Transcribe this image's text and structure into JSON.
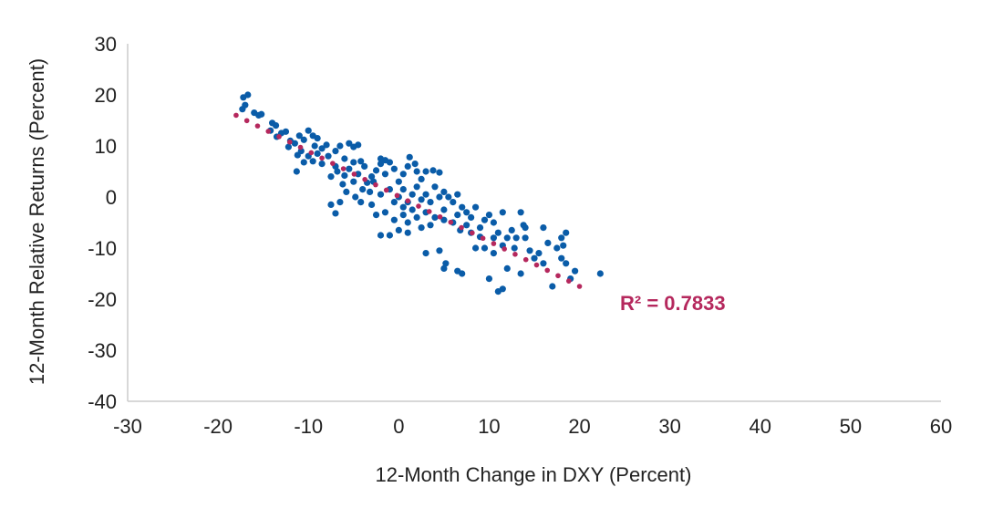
{
  "chart_data": {
    "type": "scatter",
    "xlabel": "12-Month Change in DXY (Percent)",
    "ylabel": "12-Month Relative Returns (Percent)",
    "xlim": [
      -30,
      60
    ],
    "ylim": [
      -40,
      30
    ],
    "xticks": [
      -30,
      -20,
      -10,
      0,
      10,
      20,
      30,
      40,
      50,
      60
    ],
    "yticks": [
      30,
      20,
      10,
      0,
      -10,
      -20,
      -30,
      -40
    ],
    "grid": false,
    "point_color": "#0a5ca8",
    "trend_color": "#b5285d",
    "trendline": {
      "x": [
        -18,
        20
      ],
      "y": [
        16,
        -17.5
      ],
      "label": "R² = 0.7833"
    },
    "points": [
      [
        -17.2,
        19.5
      ],
      [
        -16.7,
        20
      ],
      [
        -17,
        18
      ],
      [
        -17.3,
        17.2
      ],
      [
        -16,
        16.5
      ],
      [
        -15.5,
        16
      ],
      [
        -15.2,
        16.2
      ],
      [
        -14,
        14.5
      ],
      [
        -13.6,
        14
      ],
      [
        -14.2,
        13
      ],
      [
        -13,
        12.5
      ],
      [
        -13.5,
        11.8
      ],
      [
        -12.5,
        12.8
      ],
      [
        -12,
        11
      ],
      [
        -11.5,
        10.5
      ],
      [
        -12.2,
        9.8
      ],
      [
        -11,
        12
      ],
      [
        -10.5,
        11.2
      ],
      [
        -10,
        13
      ],
      [
        -9.5,
        12
      ],
      [
        -9,
        11.5
      ],
      [
        -9.3,
        10
      ],
      [
        -10.8,
        9
      ],
      [
        -11.2,
        8.2
      ],
      [
        -10,
        8
      ],
      [
        -9,
        8.5
      ],
      [
        -8.5,
        9.5
      ],
      [
        -8,
        10.2
      ],
      [
        -7.8,
        8
      ],
      [
        -8.5,
        6.5
      ],
      [
        -9.5,
        7
      ],
      [
        -10.5,
        6.8
      ],
      [
        -11.3,
        5
      ],
      [
        -7,
        9
      ],
      [
        -6.5,
        10
      ],
      [
        -5.5,
        10.5
      ],
      [
        -5,
        9.8
      ],
      [
        -4.5,
        10.2
      ],
      [
        -6,
        7.5
      ],
      [
        -7,
        6
      ],
      [
        -6.8,
        5
      ],
      [
        -7.5,
        4
      ],
      [
        -6,
        4.2
      ],
      [
        -5.5,
        5.5
      ],
      [
        -5,
        6.8
      ],
      [
        -4.2,
        7
      ],
      [
        -3.8,
        6
      ],
      [
        -4.5,
        4.5
      ],
      [
        -5,
        3
      ],
      [
        -6.2,
        2.5
      ],
      [
        -5.8,
        1
      ],
      [
        -4.8,
        0
      ],
      [
        -4,
        1.5
      ],
      [
        -3.5,
        2.8
      ],
      [
        -3,
        4
      ],
      [
        -2.5,
        5.2
      ],
      [
        -2,
        6.5
      ],
      [
        -1.5,
        7.2
      ],
      [
        -2,
        7.5
      ],
      [
        -1,
        6.8
      ],
      [
        -0.5,
        5.5
      ],
      [
        -1.5,
        4.5
      ],
      [
        -2.8,
        3
      ],
      [
        -3.2,
        1
      ],
      [
        -4.2,
        -1
      ],
      [
        -3,
        -1.5
      ],
      [
        -2,
        0.5
      ],
      [
        -1,
        1.5
      ],
      [
        0,
        3
      ],
      [
        0.5,
        4.5
      ],
      [
        1,
        6
      ],
      [
        1.2,
        7.8
      ],
      [
        1.8,
        6.5
      ],
      [
        2,
        5
      ],
      [
        0,
        0
      ],
      [
        0.5,
        1.5
      ],
      [
        -0.5,
        -1
      ],
      [
        0.5,
        -2
      ],
      [
        1,
        -1
      ],
      [
        1.5,
        0.5
      ],
      [
        2,
        2
      ],
      [
        2.5,
        3.5
      ],
      [
        3,
        5
      ],
      [
        3.8,
        5.2
      ],
      [
        4.5,
        4.8
      ],
      [
        4,
        2
      ],
      [
        3,
        0.5
      ],
      [
        2.5,
        -0.5
      ],
      [
        1.5,
        -2.5
      ],
      [
        0.5,
        -3.5
      ],
      [
        -0.5,
        -4.5
      ],
      [
        -1.5,
        -3
      ],
      [
        -2.5,
        -3.5
      ],
      [
        -7,
        -3.2
      ],
      [
        -7.5,
        -1.5
      ],
      [
        -6.5,
        -1
      ],
      [
        1,
        -5
      ],
      [
        0,
        -6.5
      ],
      [
        -1,
        -7.5
      ],
      [
        -2,
        -7.5
      ],
      [
        1,
        -7
      ],
      [
        2,
        -4
      ],
      [
        3,
        -3
      ],
      [
        3.5,
        -1
      ],
      [
        4.5,
        0
      ],
      [
        5,
        1
      ],
      [
        5.5,
        0
      ],
      [
        6,
        -1
      ],
      [
        6.5,
        0.5
      ],
      [
        7,
        -2
      ],
      [
        5,
        -2.5
      ],
      [
        4,
        -4
      ],
      [
        5,
        -4.5
      ],
      [
        6,
        -5
      ],
      [
        6.5,
        -3.5
      ],
      [
        7.5,
        -3
      ],
      [
        8,
        -4
      ],
      [
        8.5,
        -2
      ],
      [
        7.5,
        -5.5
      ],
      [
        6.8,
        -6.5
      ],
      [
        8,
        -7
      ],
      [
        9,
        -6
      ],
      [
        9.5,
        -4.5
      ],
      [
        10,
        -3.5
      ],
      [
        10.5,
        -5
      ],
      [
        9,
        -7.8
      ],
      [
        10.5,
        -8
      ],
      [
        11,
        -7
      ],
      [
        11.5,
        -9.5
      ],
      [
        12,
        -8
      ],
      [
        12.5,
        -6.5
      ],
      [
        12.8,
        -10
      ],
      [
        11.5,
        -3
      ],
      [
        13.5,
        -3
      ],
      [
        13.8,
        -5.5
      ],
      [
        14,
        -6
      ],
      [
        14,
        -8
      ],
      [
        13,
        -8
      ],
      [
        14.5,
        -10.5
      ],
      [
        15,
        -12
      ],
      [
        15.5,
        -11
      ],
      [
        16,
        -6
      ],
      [
        16,
        -13
      ],
      [
        16.5,
        -9
      ],
      [
        17,
        -17.5
      ],
      [
        17.5,
        -10
      ],
      [
        18,
        -8
      ],
      [
        18.5,
        -7
      ],
      [
        18.2,
        -9.5
      ],
      [
        18,
        -12
      ],
      [
        18.5,
        -13
      ],
      [
        19.5,
        -14.5
      ],
      [
        19,
        -16
      ],
      [
        22.3,
        -15
      ],
      [
        13.5,
        -15
      ],
      [
        12,
        -14
      ],
      [
        11,
        -18.5
      ],
      [
        11.5,
        -18
      ],
      [
        10,
        -16
      ],
      [
        8.5,
        -10
      ],
      [
        7,
        -15
      ],
      [
        6.5,
        -14.5
      ],
      [
        5,
        -14
      ],
      [
        5.2,
        -13
      ],
      [
        3,
        -11
      ],
      [
        4.5,
        -10.5
      ],
      [
        2.5,
        -6
      ],
      [
        3.5,
        -5.5
      ],
      [
        9.5,
        -10
      ],
      [
        10.5,
        -11
      ]
    ]
  }
}
